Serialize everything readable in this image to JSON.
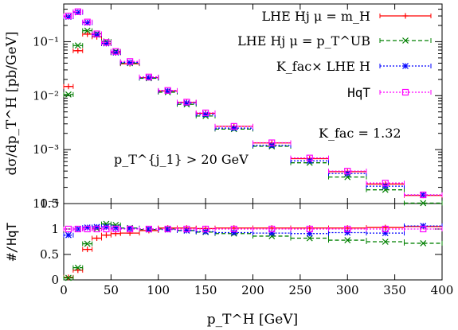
{
  "chart_data": [
    {
      "panel": "main",
      "type": "line",
      "scale": "log",
      "xlim": [
        0,
        400
      ],
      "ylim": [
        0.0001,
        0.5
      ],
      "grid": false,
      "legend_position": "top-right",
      "ylabel": "dσ/dp_T^H [pb/GeV]",
      "y_tick_labels": [
        "10⁻⁴",
        "10⁻³",
        "10⁻²",
        "10⁻¹"
      ],
      "y_tick_values": [
        0.0001,
        0.001,
        0.01,
        0.1
      ],
      "annotations": [
        "p_T^{j_1} > 20 GeV",
        "K_fac = 1.32"
      ],
      "x_bins": [
        [
          0,
          10
        ],
        [
          10,
          20
        ],
        [
          20,
          30
        ],
        [
          30,
          40
        ],
        [
          40,
          50
        ],
        [
          50,
          60
        ],
        [
          60,
          80
        ],
        [
          80,
          100
        ],
        [
          100,
          120
        ],
        [
          120,
          140
        ],
        [
          140,
          160
        ],
        [
          160,
          200
        ],
        [
          200,
          240
        ],
        [
          240,
          280
        ],
        [
          280,
          320
        ],
        [
          320,
          360
        ],
        [
          360,
          400
        ]
      ],
      "series": [
        {
          "name": "LHE Hj μ = m_H",
          "color": "#ff0000",
          "marker": "plus",
          "dash": "solid",
          "values": [
            0.0148,
            0.068,
            0.138,
            0.123,
            0.092,
            0.062,
            0.039,
            0.0215,
            0.0122,
            0.0075,
            0.0047,
            0.0027,
            0.00133,
            0.00068,
            0.00039,
            0.00023,
            0.000142
          ]
        },
        {
          "name": "LHE Hj μ = p_T^UB",
          "color": "#008000",
          "marker": "x",
          "dash": "dashed",
          "values": [
            0.0105,
            0.085,
            0.16,
            0.14,
            0.101,
            0.066,
            0.04,
            0.021,
            0.0116,
            0.0069,
            0.0042,
            0.0024,
            0.00115,
            0.00057,
            0.00031,
            0.00018,
            0.000102
          ]
        },
        {
          "name": "K_fac× LHE H",
          "color": "#0000ff",
          "marker": "star",
          "dash": "dotted",
          "values": [
            0.29,
            0.35,
            0.225,
            0.135,
            0.093,
            0.063,
            0.041,
            0.0215,
            0.0122,
            0.0073,
            0.0045,
            0.0025,
            0.0012,
            0.00062,
            0.00036,
            0.00021,
            0.000145
          ]
        },
        {
          "name": "HqT",
          "color": "#ff00ff",
          "marker": "square",
          "dash": "dotted",
          "values": [
            0.3,
            0.36,
            0.232,
            0.14,
            0.097,
            0.066,
            0.043,
            0.0222,
            0.0125,
            0.0076,
            0.0048,
            0.0027,
            0.00134,
            0.0007,
            0.0004,
            0.00024,
            0.000145
          ]
        }
      ]
    },
    {
      "panel": "ratio",
      "type": "line",
      "xlim": [
        0,
        400
      ],
      "ylim": [
        0,
        1.5
      ],
      "grid": false,
      "xlabel": "p_T^H [GeV]",
      "ylabel": "#/HqT",
      "x_tick_labels": [
        "0",
        "50",
        "100",
        "150",
        "200",
        "250",
        "300",
        "350",
        "400"
      ],
      "x_tick_values": [
        0,
        50,
        100,
        150,
        200,
        250,
        300,
        350,
        400
      ],
      "y_tick_labels": [
        "0",
        "0.5",
        "1",
        "1.5"
      ],
      "y_tick_values": [
        0,
        0.5,
        1,
        1.5
      ],
      "x_bins": [
        [
          0,
          10
        ],
        [
          10,
          20
        ],
        [
          20,
          30
        ],
        [
          30,
          40
        ],
        [
          40,
          50
        ],
        [
          50,
          60
        ],
        [
          60,
          80
        ],
        [
          80,
          100
        ],
        [
          100,
          120
        ],
        [
          120,
          140
        ],
        [
          140,
          160
        ],
        [
          160,
          200
        ],
        [
          200,
          240
        ],
        [
          240,
          280
        ],
        [
          280,
          320
        ],
        [
          320,
          360
        ],
        [
          360,
          400
        ]
      ],
      "series": [
        {
          "name": "LHE Hj μ = m_H",
          "color": "#ff0000",
          "marker": "plus",
          "dash": "solid",
          "values": [
            0.05,
            0.19,
            0.6,
            0.82,
            0.88,
            0.91,
            0.92,
            0.97,
            1.02,
            1.02,
            1.01,
            1.02,
            1.02,
            1.02,
            1.02,
            1.03,
            1.05
          ]
        },
        {
          "name": "LHE Hj μ = p_T^UB",
          "color": "#008000",
          "marker": "x",
          "dash": "dashed",
          "values": [
            0.04,
            0.24,
            0.71,
            1.01,
            1.1,
            1.08,
            1.02,
            0.99,
            1.0,
            0.97,
            0.94,
            0.91,
            0.86,
            0.82,
            0.78,
            0.75,
            0.72
          ]
        },
        {
          "name": "K_fac× LHE H",
          "color": "#0000ff",
          "marker": "star",
          "dash": "dotted",
          "values": [
            0.88,
            1.0,
            1.03,
            1.04,
            1.04,
            1.02,
            1.01,
            1.0,
            0.99,
            0.97,
            0.95,
            0.93,
            0.92,
            0.91,
            0.93,
            0.92,
            1.06
          ]
        },
        {
          "name": "HqT",
          "color": "#ff00ff",
          "marker": "square",
          "dash": "dotted",
          "values": [
            1,
            1,
            1,
            1,
            1,
            1,
            1,
            1,
            1,
            1,
            1,
            1,
            1,
            1,
            1,
            1,
            1
          ]
        }
      ]
    }
  ]
}
